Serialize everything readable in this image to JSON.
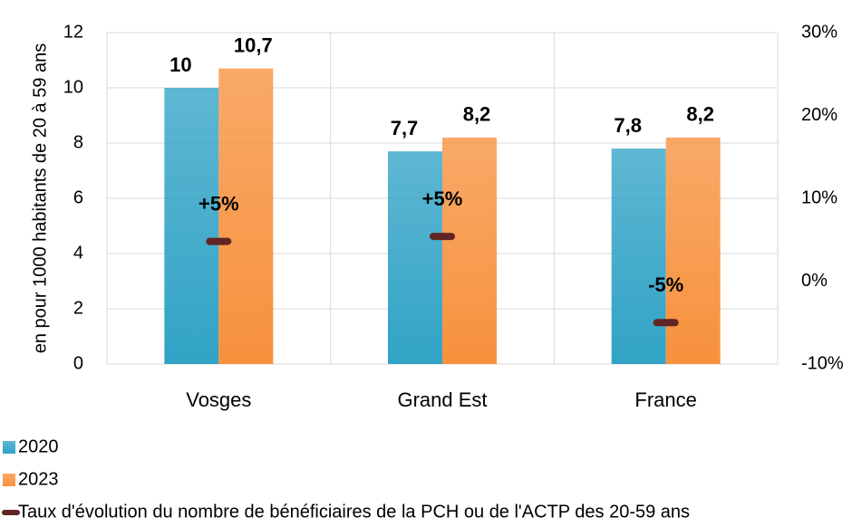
{
  "chart_data": {
    "type": "bar",
    "y_label": "en pour 1000 habitants de 20 à 59 ans",
    "categories": [
      "Vosges",
      "Grand Est",
      "France"
    ],
    "series": [
      {
        "name": "2020",
        "color": "#31a3c6",
        "label_color": "#31849b",
        "values": [
          10,
          7.7,
          7.8
        ],
        "value_labels": [
          "10",
          "7,7",
          "7,8"
        ]
      },
      {
        "name": "2023",
        "color": "#f7913d",
        "label_color": "#e36c09",
        "values": [
          10.7,
          8.2,
          8.2
        ],
        "value_labels": [
          "10,7",
          "8,2",
          "8,2"
        ]
      },
      {
        "name": "Taux d'évolution du nombre de bénéficiaires de la PCH ou de l'ACTP des 20-59 ans",
        "color": "#632523",
        "label_color": "#632523",
        "axis": "y2",
        "marker": "dash",
        "values": [
          4.8,
          5.4,
          -5
        ],
        "value_labels": [
          "+5%",
          "+5%",
          "-5%"
        ]
      }
    ],
    "ylim": [
      0,
      12
    ],
    "yticks": [
      0,
      2,
      4,
      6,
      8,
      10,
      12
    ],
    "y2lim": [
      -10,
      30
    ],
    "y2ticks": [
      {
        "value": -10,
        "label": "-10%"
      },
      {
        "value": 0,
        "label": "0%"
      },
      {
        "value": 10,
        "label": "10%"
      },
      {
        "value": 20,
        "label": "20%"
      },
      {
        "value": 30,
        "label": "30%"
      }
    ],
    "grid": true,
    "legend": "bottom-left"
  }
}
